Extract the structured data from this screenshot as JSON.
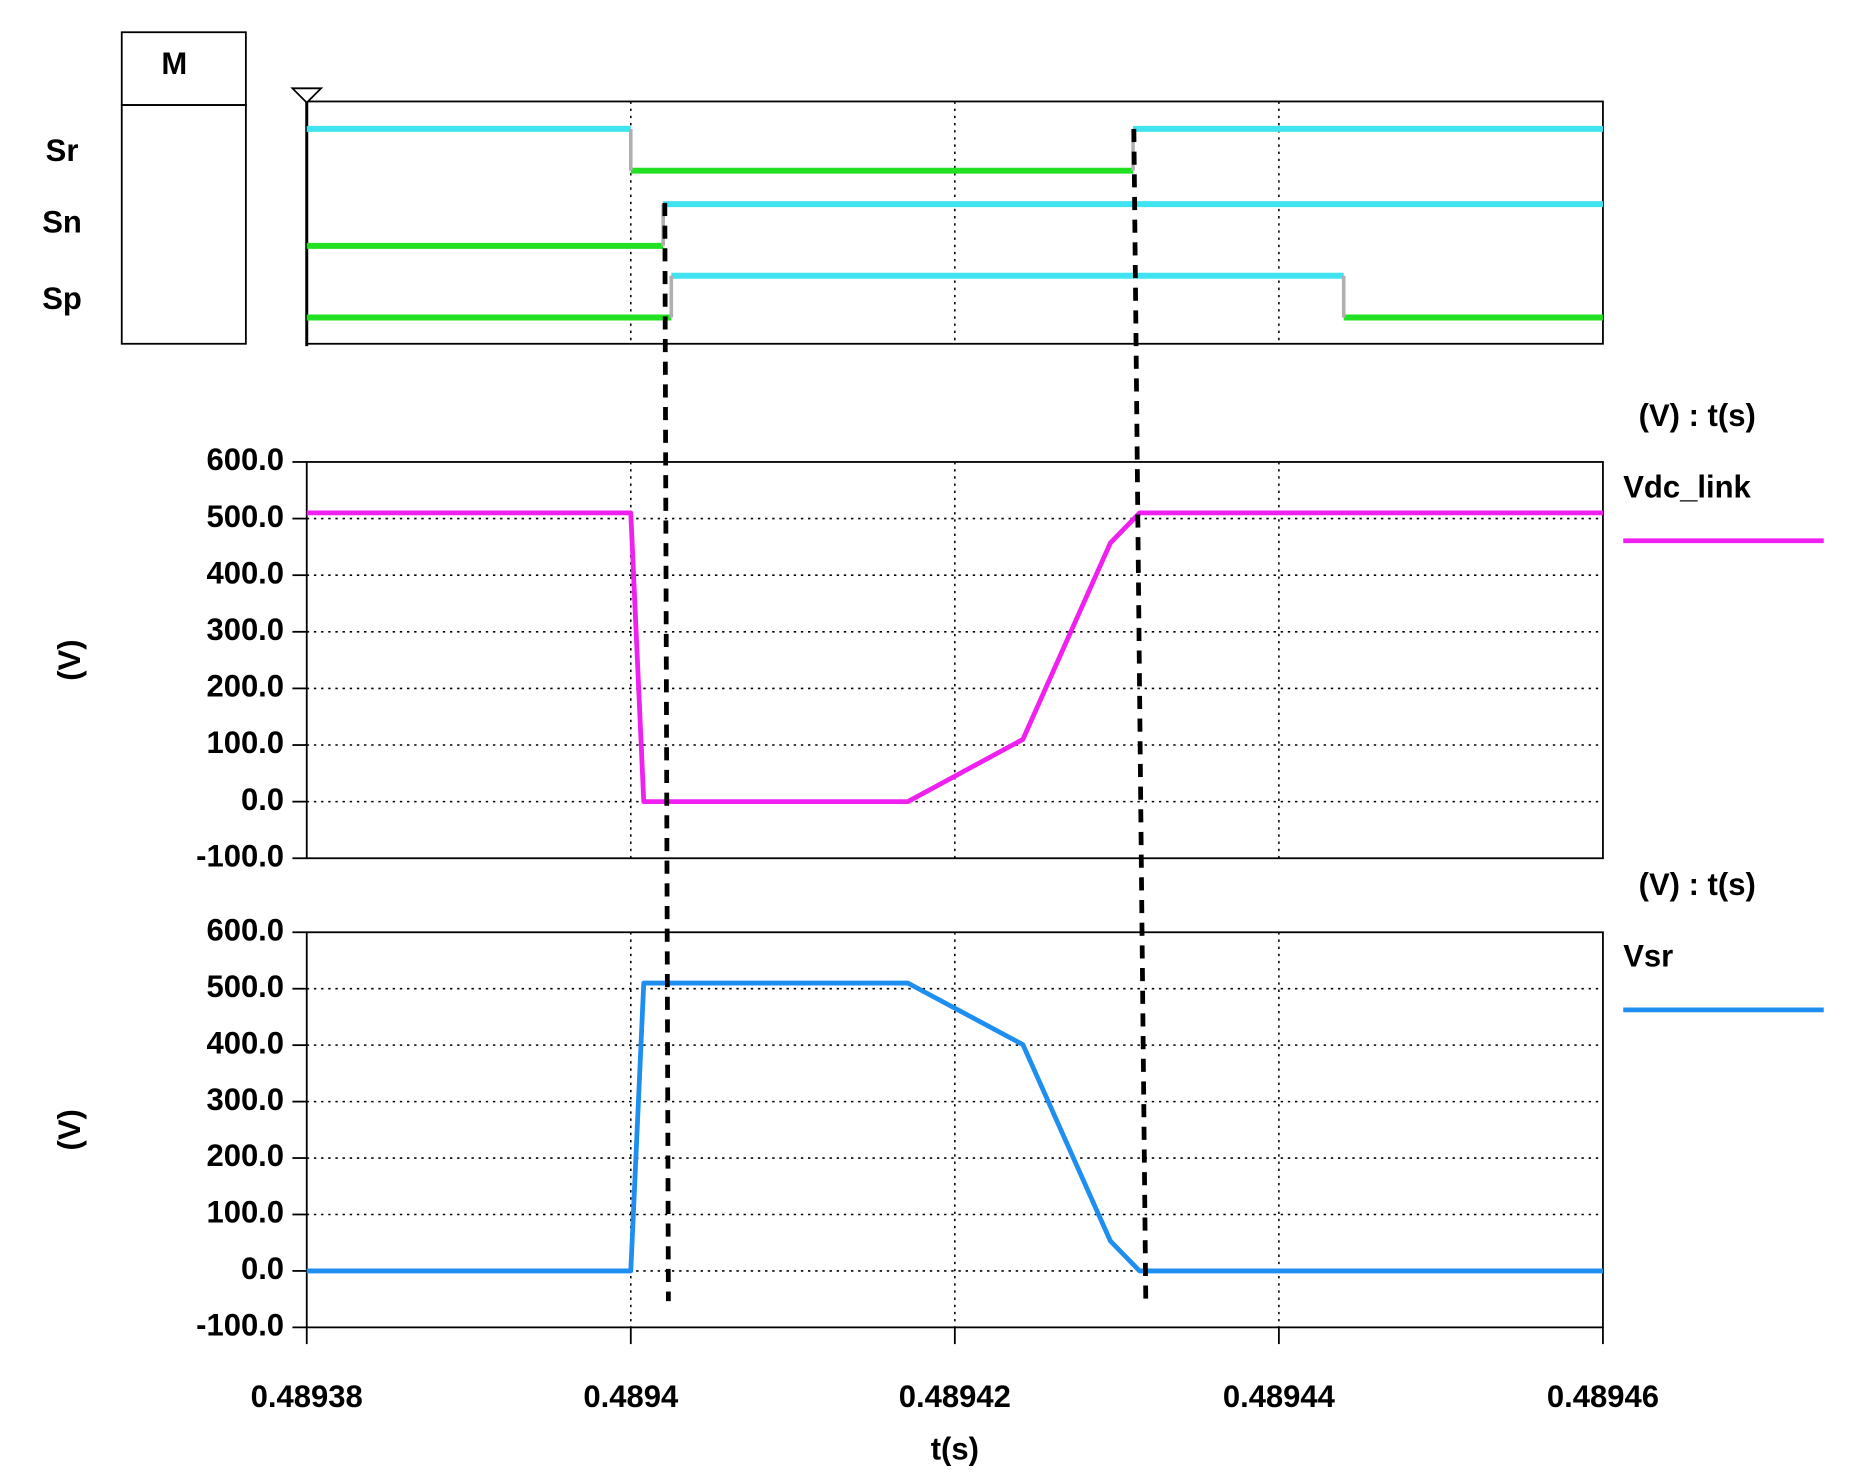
{
  "chart_data": [
    {
      "type": "digital",
      "header": "M",
      "xlim": [
        0.48938,
        0.48946
      ],
      "high_color": "#40e4f0",
      "low_color": "#22e022",
      "edge_color": "#b0b0b0",
      "series": [
        {
          "name": "Sr",
          "x": [
            0.48938,
            0.4894,
            0.489431,
            0.48946
          ],
          "values": [
            1,
            0,
            1,
            1
          ]
        },
        {
          "name": "Sn",
          "x": [
            0.48938,
            0.489402,
            0.48946
          ],
          "values": [
            0,
            1,
            1
          ]
        },
        {
          "name": "Sp",
          "x": [
            0.48938,
            0.4894025,
            0.489444,
            0.48946
          ],
          "values": [
            0,
            1,
            0,
            0
          ]
        }
      ]
    },
    {
      "type": "line",
      "title": "(V) : t(s)",
      "ylabel": "(V)",
      "xlim": [
        0.48938,
        0.48946
      ],
      "ylim": [
        -100,
        600
      ],
      "yticks": [
        {
          "value": 600,
          "label": "600.0"
        },
        {
          "value": 500,
          "label": "500.0"
        },
        {
          "value": 400,
          "label": "400.0"
        },
        {
          "value": 300,
          "label": "300.0"
        },
        {
          "value": 200,
          "label": "200.0"
        },
        {
          "value": 100,
          "label": "100.0"
        },
        {
          "value": 0,
          "label": "0.0"
        },
        {
          "value": -100,
          "label": "-100.0"
        }
      ],
      "grid": true,
      "series": [
        {
          "name": "Vdc_link",
          "color": "#f020f0",
          "x": [
            0.48938,
            0.4894,
            0.4894008,
            0.4894171,
            0.4894242,
            0.4894296,
            0.4894314,
            0.48946
          ],
          "values": [
            510,
            510,
            0,
            0,
            110,
            457,
            510,
            510
          ]
        }
      ]
    },
    {
      "type": "line",
      "title": "(V) : t(s)",
      "ylabel": "(V)",
      "xlabel": "t(s)",
      "xlim": [
        0.48938,
        0.48946
      ],
      "ylim": [
        -100,
        600
      ],
      "xticks": [
        0.48938,
        0.4894,
        0.48942,
        0.48944,
        0.48946
      ],
      "yticks": [
        {
          "value": 600,
          "label": "600.0"
        },
        {
          "value": 500,
          "label": "500.0"
        },
        {
          "value": 400,
          "label": "400.0"
        },
        {
          "value": 300,
          "label": "300.0"
        },
        {
          "value": 200,
          "label": "200.0"
        },
        {
          "value": 100,
          "label": "100.0"
        },
        {
          "value": 0,
          "label": "0.0"
        },
        {
          "value": -100,
          "label": "-100.0"
        }
      ],
      "grid": true,
      "series": [
        {
          "name": "Vsr",
          "color": "#1e8ef0",
          "x": [
            0.48938,
            0.4894,
            0.4894008,
            0.4894171,
            0.4894242,
            0.4894296,
            0.4894314,
            0.48946
          ],
          "values": [
            0,
            0,
            510,
            510,
            401,
            53,
            0,
            0
          ]
        }
      ]
    }
  ]
}
